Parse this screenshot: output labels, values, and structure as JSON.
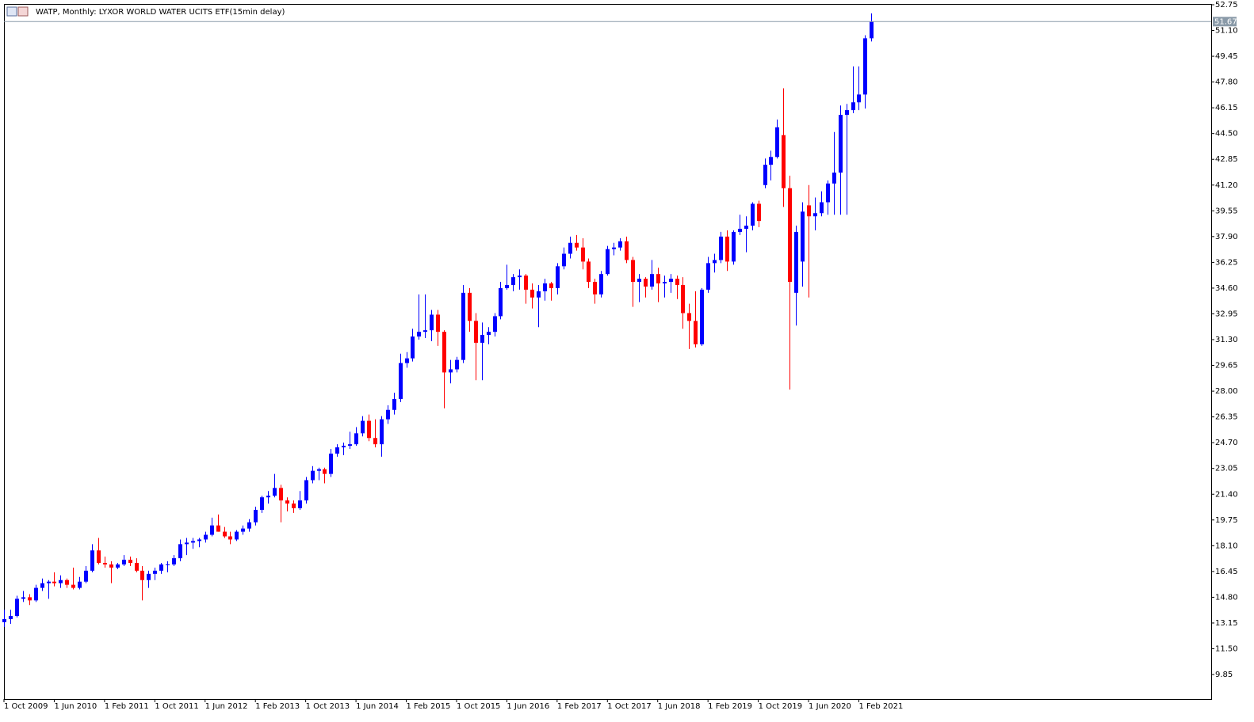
{
  "chart_data": {
    "type": "candlestick",
    "title": "WATP, Monthly:  LYXOR WORLD WATER UCITS ETF(15min delay)",
    "up_color": "#0000ff",
    "down_color": "#ff0000",
    "last_price": 51.67,
    "ylim": [
      8.28,
      52.8
    ],
    "yticks": [
      52.75,
      {
        "value": 51.1,
        "label": "51.10"
      },
      49.45,
      {
        "value": 47.8,
        "label": "47.80"
      },
      46.15,
      {
        "value": 44.5,
        "label": "44.50"
      },
      42.85,
      {
        "value": 41.2,
        "label": "41.20"
      },
      39.55,
      {
        "value": 37.9,
        "label": "37.90"
      },
      36.25,
      {
        "value": 34.6,
        "label": "34.60"
      },
      32.95,
      {
        "value": 31.3,
        "label": "31.30"
      },
      29.65,
      {
        "value": 28,
        "label": "28.00"
      },
      26.35,
      {
        "value": 24.7,
        "label": "24.70"
      },
      23.05,
      {
        "value": 21.4,
        "label": "21.40"
      },
      19.75,
      {
        "value": 18.1,
        "label": "18.10"
      },
      16.45,
      {
        "value": 14.8,
        "label": "14.80"
      },
      13.15,
      {
        "value": 11.5,
        "label": "11.50"
      },
      9.85
    ],
    "categories": [
      "1 Oct 2009",
      null,
      null,
      null,
      null,
      null,
      null,
      null,
      "1 Jun 2010",
      null,
      null,
      null,
      null,
      null,
      null,
      null,
      "1 Feb 2011",
      null,
      null,
      null,
      null,
      null,
      null,
      null,
      "1 Oct 2011",
      null,
      null,
      null,
      null,
      null,
      null,
      null,
      "1 Jun 2012",
      null,
      null,
      null,
      null,
      null,
      null,
      null,
      "1 Feb 2013",
      null,
      null,
      null,
      null,
      null,
      null,
      null,
      "1 Oct 2013",
      null,
      null,
      null,
      null,
      null,
      null,
      null,
      "1 Jun 2014",
      null,
      null,
      null,
      null,
      null,
      null,
      null,
      "1 Feb 2015",
      null,
      null,
      null,
      null,
      null,
      null,
      null,
      "1 Oct 2015",
      null,
      null,
      null,
      null,
      null,
      null,
      null,
      "1 Jun 2016",
      null,
      null,
      null,
      null,
      null,
      null,
      null,
      "1 Feb 2017",
      null,
      null,
      null,
      null,
      null,
      null,
      null,
      "1 Oct 2017",
      null,
      null,
      null,
      null,
      null,
      null,
      null,
      "1 Jun 2018",
      null,
      null,
      null,
      null,
      null,
      null,
      null,
      "1 Feb 2019",
      null,
      null,
      null,
      null,
      null,
      null,
      null,
      "1 Oct 2019",
      null,
      null,
      null,
      null,
      null,
      null,
      null,
      "1 Jun 2020",
      null,
      null,
      null,
      null,
      null,
      null,
      null,
      "1 Feb 2021",
      null,
      null
    ],
    "ohlc": [
      [
        13.2,
        14.0,
        12.9,
        13.4
      ],
      [
        13.4,
        14.0,
        13.1,
        13.6
      ],
      [
        13.6,
        14.9,
        13.5,
        14.7
      ],
      [
        14.7,
        15.2,
        14.5,
        14.8
      ],
      [
        14.8,
        15.0,
        14.3,
        14.6
      ],
      [
        14.6,
        15.6,
        14.5,
        15.4
      ],
      [
        15.4,
        16.0,
        15.2,
        15.7
      ],
      [
        15.7,
        15.9,
        14.7,
        15.8
      ],
      [
        15.8,
        16.4,
        15.5,
        15.7
      ],
      [
        15.7,
        16.2,
        15.4,
        15.9
      ],
      [
        15.9,
        16.0,
        15.4,
        15.6
      ],
      [
        15.6,
        16.7,
        15.3,
        15.4
      ],
      [
        15.4,
        16.1,
        15.3,
        15.8
      ],
      [
        15.8,
        16.8,
        15.7,
        16.5
      ],
      [
        16.5,
        18.2,
        16.4,
        17.8
      ],
      [
        17.8,
        18.6,
        16.9,
        17.0
      ],
      [
        17.0,
        17.4,
        16.7,
        16.9
      ],
      [
        16.9,
        17.1,
        15.7,
        16.7
      ],
      [
        16.7,
        17.0,
        16.6,
        16.9
      ],
      [
        16.9,
        17.5,
        16.8,
        17.2
      ],
      [
        17.2,
        17.4,
        16.8,
        17.0
      ],
      [
        17.0,
        17.3,
        16.4,
        16.5
      ],
      [
        16.5,
        16.8,
        14.6,
        15.9
      ],
      [
        15.9,
        16.5,
        15.4,
        16.3
      ],
      [
        16.3,
        16.7,
        15.9,
        16.5
      ],
      [
        16.5,
        17.0,
        16.3,
        16.9
      ],
      [
        16.9,
        17.1,
        16.4,
        16.9
      ],
      [
        16.9,
        17.5,
        16.8,
        17.3
      ],
      [
        17.3,
        18.5,
        17.1,
        18.2
      ],
      [
        18.2,
        18.6,
        17.5,
        18.3
      ],
      [
        18.3,
        18.6,
        17.9,
        18.4
      ],
      [
        18.4,
        18.6,
        18.0,
        18.5
      ],
      [
        18.5,
        19.0,
        18.3,
        18.8
      ],
      [
        18.8,
        19.9,
        18.7,
        19.4
      ],
      [
        19.4,
        20.1,
        19.0,
        19.0
      ],
      [
        19.0,
        19.3,
        18.6,
        18.7
      ],
      [
        18.7,
        19.0,
        18.2,
        18.5
      ],
      [
        18.5,
        19.1,
        18.4,
        19.0
      ],
      [
        19.0,
        19.4,
        18.8,
        19.2
      ],
      [
        19.2,
        19.8,
        19.0,
        19.6
      ],
      [
        19.6,
        20.6,
        19.4,
        20.4
      ],
      [
        20.4,
        21.3,
        20.2,
        21.2
      ],
      [
        21.2,
        21.6,
        20.8,
        21.3
      ],
      [
        21.3,
        22.7,
        21.2,
        21.8
      ],
      [
        21.8,
        22.0,
        19.6,
        21.0
      ],
      [
        21.0,
        21.2,
        20.3,
        20.8
      ],
      [
        20.8,
        21.0,
        20.2,
        20.5
      ],
      [
        20.5,
        21.6,
        20.4,
        21.0
      ],
      [
        21.0,
        22.5,
        20.8,
        22.3
      ],
      [
        22.3,
        23.2,
        22.1,
        22.9
      ],
      [
        22.9,
        23.1,
        22.3,
        23.0
      ],
      [
        23.0,
        23.1,
        22.1,
        22.7
      ],
      [
        22.7,
        24.3,
        22.5,
        24.0
      ],
      [
        24.0,
        24.6,
        23.8,
        24.4
      ],
      [
        24.4,
        24.7,
        23.9,
        24.5
      ],
      [
        24.5,
        25.4,
        24.3,
        24.6
      ],
      [
        24.6,
        25.7,
        24.5,
        25.3
      ],
      [
        25.3,
        26.4,
        25.1,
        26.1
      ],
      [
        26.1,
        26.5,
        24.8,
        25.0
      ],
      [
        25.0,
        26.2,
        24.4,
        24.6
      ],
      [
        24.6,
        26.4,
        23.8,
        26.2
      ],
      [
        26.2,
        27.1,
        25.9,
        26.8
      ],
      [
        26.8,
        27.9,
        26.5,
        27.5
      ],
      [
        27.5,
        30.4,
        27.3,
        29.8
      ],
      [
        29.8,
        30.5,
        29.5,
        30.1
      ],
      [
        30.1,
        32.0,
        29.9,
        31.5
      ],
      [
        31.5,
        34.2,
        31.3,
        31.8
      ],
      [
        31.8,
        34.2,
        31.4,
        31.9
      ],
      [
        31.9,
        33.2,
        31.2,
        32.9
      ],
      [
        32.9,
        33.2,
        30.9,
        31.8
      ],
      [
        31.8,
        31.9,
        26.9,
        29.2
      ],
      [
        29.2,
        30.0,
        28.5,
        29.4
      ],
      [
        29.4,
        30.2,
        29.2,
        30.0
      ],
      [
        30.0,
        34.8,
        29.8,
        34.3
      ],
      [
        34.3,
        34.6,
        31.8,
        32.5
      ],
      [
        32.5,
        33.0,
        28.7,
        31.1
      ],
      [
        31.1,
        32.4,
        28.7,
        31.6
      ],
      [
        31.6,
        32.1,
        31.0,
        31.8
      ],
      [
        31.8,
        33.0,
        31.5,
        32.8
      ],
      [
        32.8,
        35.0,
        32.6,
        34.6
      ],
      [
        34.6,
        36.1,
        34.5,
        34.8
      ],
      [
        34.8,
        35.5,
        34.4,
        35.3
      ],
      [
        35.3,
        35.8,
        34.5,
        35.4
      ],
      [
        35.4,
        35.5,
        33.6,
        34.5
      ],
      [
        34.5,
        34.9,
        33.3,
        34.0
      ],
      [
        34.0,
        34.8,
        32.1,
        34.4
      ],
      [
        34.4,
        35.2,
        33.8,
        34.9
      ],
      [
        34.9,
        35.0,
        33.8,
        34.6
      ],
      [
        34.6,
        36.2,
        34.2,
        36.0
      ],
      [
        36.0,
        37.2,
        35.8,
        36.8
      ],
      [
        36.8,
        37.9,
        36.5,
        37.5
      ],
      [
        37.5,
        38.0,
        37.0,
        37.2
      ],
      [
        37.2,
        37.8,
        35.8,
        36.3
      ],
      [
        36.3,
        36.5,
        34.6,
        35.0
      ],
      [
        35.0,
        35.2,
        33.6,
        34.2
      ],
      [
        34.2,
        35.7,
        34.0,
        35.5
      ],
      [
        35.5,
        37.3,
        35.4,
        37.1
      ],
      [
        37.1,
        37.5,
        36.7,
        37.2
      ],
      [
        37.2,
        37.8,
        37.0,
        37.6
      ],
      [
        37.6,
        37.9,
        36.2,
        36.4
      ],
      [
        36.4,
        36.6,
        33.4,
        35.0
      ],
      [
        35.0,
        35.5,
        33.7,
        35.2
      ],
      [
        35.2,
        35.3,
        34.0,
        34.7
      ],
      [
        34.7,
        36.4,
        34.5,
        35.5
      ],
      [
        35.5,
        35.9,
        33.7,
        34.9
      ],
      [
        34.9,
        35.4,
        34.0,
        35.0
      ],
      [
        35.0,
        35.5,
        34.3,
        35.2
      ],
      [
        35.2,
        35.4,
        33.9,
        34.8
      ],
      [
        34.8,
        35.3,
        32.0,
        33.0
      ],
      [
        33.0,
        33.6,
        30.7,
        32.5
      ],
      [
        32.5,
        34.4,
        30.8,
        31.0
      ],
      [
        31.0,
        34.6,
        30.9,
        34.5
      ],
      [
        34.5,
        36.6,
        34.3,
        36.2
      ],
      [
        36.2,
        36.8,
        35.6,
        36.4
      ],
      [
        36.4,
        38.2,
        36.2,
        37.9
      ],
      [
        37.9,
        38.3,
        35.7,
        36.3
      ],
      [
        36.3,
        38.3,
        36.1,
        38.2
      ],
      [
        38.2,
        39.3,
        38.0,
        38.4
      ],
      [
        38.4,
        39.2,
        36.9,
        38.6
      ],
      [
        38.6,
        40.1,
        38.3,
        40.0
      ],
      [
        40.0,
        40.2,
        38.5,
        38.9
      ],
      [
        41.2,
        42.9,
        41.0,
        42.5
      ],
      [
        42.5,
        43.4,
        41.5,
        43.0
      ],
      [
        43.0,
        45.4,
        42.9,
        44.9
      ],
      [
        44.4,
        47.4,
        39.8,
        41.0
      ],
      [
        41.0,
        41.8,
        28.1,
        35.0
      ],
      [
        34.3,
        38.6,
        32.2,
        38.2
      ],
      [
        36.3,
        40.1,
        34.7,
        39.5
      ],
      [
        39.9,
        41.2,
        34.0,
        39.2
      ],
      [
        39.2,
        40.4,
        38.3,
        39.4
      ],
      [
        39.4,
        40.8,
        39.2,
        40.1
      ],
      [
        40.1,
        41.5,
        39.3,
        41.3
      ],
      [
        41.3,
        44.6,
        39.3,
        42.0
      ],
      [
        42.0,
        46.3,
        39.3,
        45.7
      ],
      [
        45.7,
        46.4,
        39.3,
        46.0
      ],
      [
        46.0,
        48.8,
        45.8,
        46.5
      ],
      [
        46.5,
        48.8,
        46.0,
        47.0
      ],
      [
        47.0,
        50.8,
        46.1,
        50.6
      ],
      [
        50.6,
        52.2,
        50.4,
        51.67
      ]
    ]
  }
}
